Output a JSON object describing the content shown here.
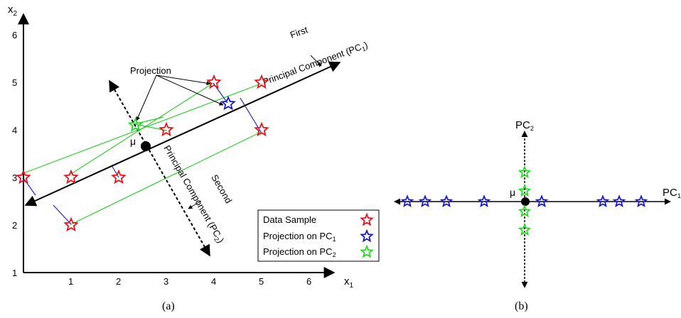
{
  "panel_a": {
    "caption": "(a)",
    "x_axis_label": "x",
    "x_axis_sub": "1",
    "y_axis_label": "x",
    "y_axis_sub": "2",
    "x_ticks": [
      "1",
      "2",
      "3",
      "4",
      "5",
      "6"
    ],
    "y_ticks": [
      "1",
      "2",
      "3",
      "4",
      "5",
      "6"
    ],
    "pc1_line1": "First",
    "pc1_line2": "Principal Component (PC",
    "pc1_sub": "1",
    "pc1_close": ")",
    "pc2_line1": "Second",
    "pc2_line2": "Principal Component (PC",
    "pc2_sub": "2",
    "pc2_close": ")",
    "projection_label": "Projection",
    "mu_label": "μ"
  },
  "legend": {
    "data_sample": "Data Sample",
    "proj_pc1_prefix": "Projection on PC",
    "proj_pc1_sub": "1",
    "proj_pc2_prefix": "Projection on PC",
    "proj_pc2_sub": "2"
  },
  "panel_b": {
    "caption": "(b)",
    "pc2_label": "PC",
    "pc2_sub": "2",
    "pc1_label": "PC",
    "pc1_sub": "1",
    "mu_label": "μ"
  },
  "colors": {
    "data_sample": "#e8141c",
    "projection_pc1": "#1a1acc",
    "projection_pc2": "#22dd22",
    "green_line": "#2ecc2e",
    "blue_line": "#2222cc",
    "axis": "#000000"
  },
  "chart_data": {
    "type": "scatter",
    "data_samples": [
      {
        "x": 0,
        "y": 3
      },
      {
        "x": 1,
        "y": 3
      },
      {
        "x": 1,
        "y": 2
      },
      {
        "x": 2,
        "y": 3
      },
      {
        "x": 3,
        "y": 4
      },
      {
        "x": 4,
        "y": 5
      },
      {
        "x": 5,
        "y": 5
      },
      {
        "x": 5,
        "y": 4
      }
    ],
    "mean": {
      "x": 2.6,
      "y": 3.7
    },
    "projection_pc1_example": {
      "x": 4.3,
      "y": 4.55
    },
    "projection_pc2_example": {
      "x": 2.35,
      "y": 4.1
    },
    "xlim": [
      0,
      6.5
    ],
    "ylim": [
      1,
      6.5
    ]
  }
}
